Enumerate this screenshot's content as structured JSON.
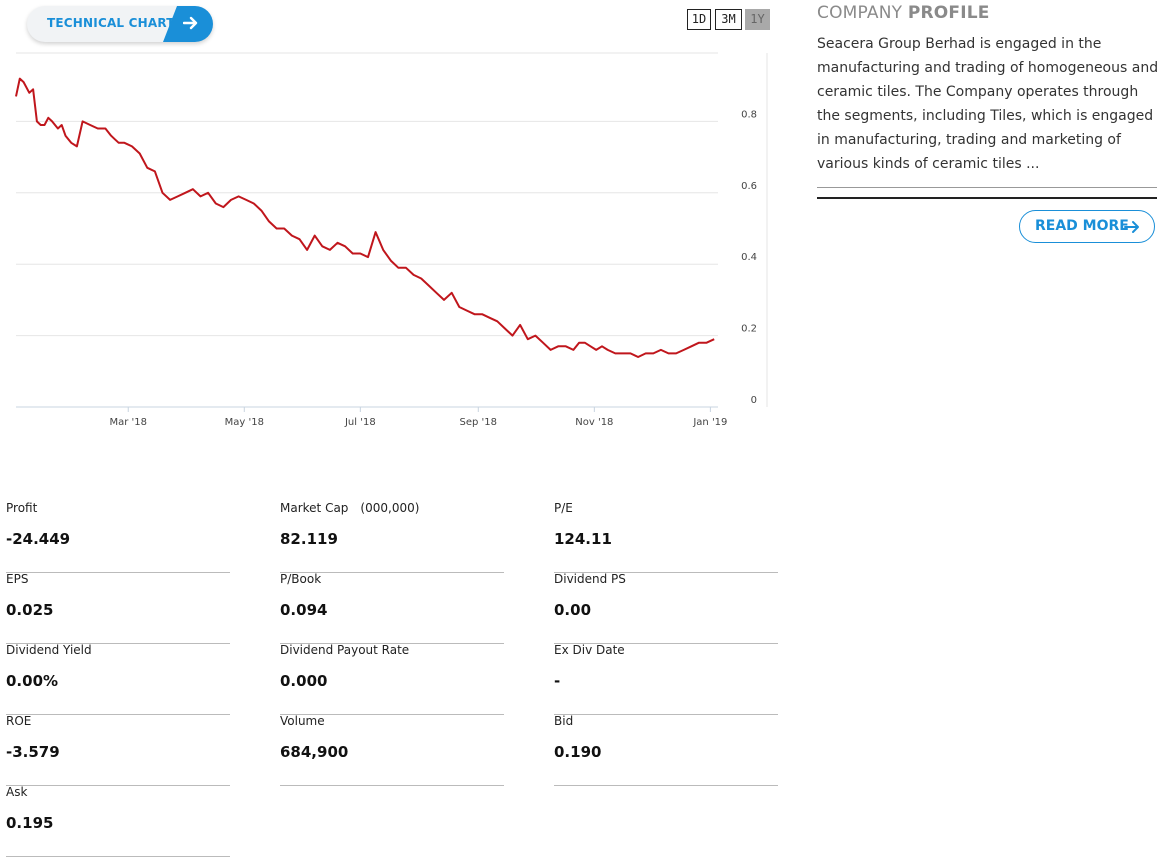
{
  "technical_chart": {
    "label": "TECHNICAL CHART",
    "icon": "arrow-right-icon"
  },
  "ranges": [
    "1D",
    "3M",
    "1Y"
  ],
  "active_range": "1Y",
  "chart_data": {
    "type": "line",
    "title": "",
    "xlabel": "",
    "ylabel": "",
    "x_tick_labels": [
      "Mar '18",
      "May '18",
      "Jul '18",
      "Sep '18",
      "Nov '18",
      "Jan '19"
    ],
    "y_tick_labels": [
      "0",
      "0.2",
      "0.4",
      "0.6",
      "0.8"
    ],
    "ylim": [
      0,
      1.0
    ],
    "x_range": [
      "2018-01-01",
      "2019-01-05"
    ],
    "y_axis_side": "right",
    "grid": true,
    "line_color": "#c0161c",
    "series": [
      {
        "x": [
          "2018-01-01",
          "2018-01-03",
          "2018-01-05",
          "2018-01-08",
          "2018-01-10",
          "2018-01-12",
          "2018-01-14",
          "2018-01-16",
          "2018-01-18",
          "2018-01-20",
          "2018-01-23",
          "2018-01-25",
          "2018-01-27",
          "2018-01-30",
          "2018-02-02",
          "2018-02-05",
          "2018-02-09",
          "2018-02-13",
          "2018-02-17",
          "2018-02-20",
          "2018-02-22",
          "2018-02-24",
          "2018-02-27",
          "2018-03-03",
          "2018-03-07",
          "2018-03-11",
          "2018-03-15",
          "2018-03-19",
          "2018-03-23",
          "2018-03-27",
          "2018-03-31",
          "2018-04-04",
          "2018-04-08",
          "2018-04-12",
          "2018-04-16",
          "2018-04-20",
          "2018-04-24",
          "2018-04-28",
          "2018-05-02",
          "2018-05-06",
          "2018-05-10",
          "2018-05-14",
          "2018-05-18",
          "2018-05-22",
          "2018-05-26",
          "2018-05-30",
          "2018-06-03",
          "2018-06-07",
          "2018-06-11",
          "2018-06-15",
          "2018-06-19",
          "2018-06-23",
          "2018-06-27",
          "2018-07-01",
          "2018-07-05",
          "2018-07-09",
          "2018-07-13",
          "2018-07-17",
          "2018-07-21",
          "2018-07-25",
          "2018-07-29",
          "2018-08-02",
          "2018-08-06",
          "2018-08-10",
          "2018-08-14",
          "2018-08-18",
          "2018-08-22",
          "2018-08-26",
          "2018-08-30",
          "2018-09-03",
          "2018-09-07",
          "2018-09-11",
          "2018-09-15",
          "2018-09-19",
          "2018-09-23",
          "2018-09-27",
          "2018-10-01",
          "2018-10-05",
          "2018-10-09",
          "2018-10-13",
          "2018-10-17",
          "2018-10-21",
          "2018-10-24",
          "2018-10-27",
          "2018-10-30",
          "2018-11-02",
          "2018-11-05",
          "2018-11-08",
          "2018-11-12",
          "2018-11-16",
          "2018-11-20",
          "2018-11-24",
          "2018-11-28",
          "2018-12-02",
          "2018-12-06",
          "2018-12-10",
          "2018-12-14",
          "2018-12-18",
          "2018-12-22",
          "2018-12-26",
          "2018-12-30",
          "2019-01-03"
        ],
        "y": [
          0.87,
          0.92,
          0.91,
          0.88,
          0.89,
          0.8,
          0.79,
          0.79,
          0.81,
          0.8,
          0.78,
          0.79,
          0.76,
          0.74,
          0.73,
          0.8,
          0.79,
          0.78,
          0.78,
          0.76,
          0.75,
          0.74,
          0.74,
          0.73,
          0.71,
          0.67,
          0.66,
          0.6,
          0.58,
          0.59,
          0.6,
          0.61,
          0.59,
          0.6,
          0.57,
          0.56,
          0.58,
          0.59,
          0.58,
          0.57,
          0.55,
          0.52,
          0.5,
          0.5,
          0.48,
          0.47,
          0.44,
          0.48,
          0.45,
          0.44,
          0.46,
          0.45,
          0.43,
          0.43,
          0.42,
          0.49,
          0.44,
          0.41,
          0.39,
          0.39,
          0.37,
          0.36,
          0.34,
          0.32,
          0.3,
          0.32,
          0.28,
          0.27,
          0.26,
          0.26,
          0.25,
          0.24,
          0.22,
          0.2,
          0.23,
          0.19,
          0.2,
          0.18,
          0.16,
          0.17,
          0.17,
          0.16,
          0.18,
          0.18,
          0.17,
          0.16,
          0.17,
          0.16,
          0.15,
          0.15,
          0.15,
          0.14,
          0.15,
          0.15,
          0.16,
          0.15,
          0.15,
          0.16,
          0.17,
          0.18,
          0.18,
          0.19
        ]
      }
    ]
  },
  "profile": {
    "title_light": "COMPANY",
    "title_bold": "PROFILE",
    "text": "Seacera Group Berhad is engaged in the manufacturing and trading of homogeneous and ceramic tiles. The Company operates through the segments, including Tiles, which is engaged in manufacturing, trading and marketing of various kinds of ceramic tiles ...",
    "read_more": "READ MORE"
  },
  "stats": [
    {
      "label": "Profit",
      "value": "-24.449"
    },
    {
      "label": "Market Cap",
      "unit": "(000,000)",
      "value": "82.119"
    },
    {
      "label": "P/E",
      "value": "124.11"
    },
    {
      "label": "EPS",
      "value": "0.025"
    },
    {
      "label": "P/Book",
      "value": "0.094"
    },
    {
      "label": "Dividend PS",
      "value": "0.00"
    },
    {
      "label": "Dividend Yield",
      "value": "0.00%"
    },
    {
      "label": "Dividend Payout Rate",
      "value": "0.000"
    },
    {
      "label": "Ex Div Date",
      "value": "-"
    },
    {
      "label": "ROE",
      "value": "-3.579"
    },
    {
      "label": "Volume",
      "value": "684,900"
    },
    {
      "label": "Bid",
      "value": "0.190"
    },
    {
      "label": "Ask",
      "value": "0.195"
    }
  ]
}
